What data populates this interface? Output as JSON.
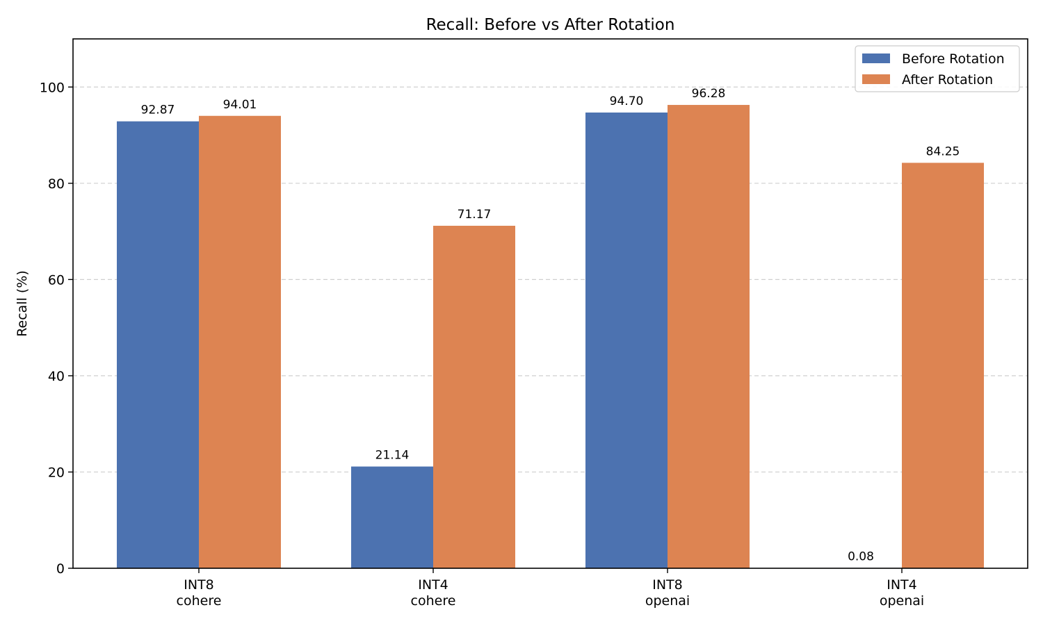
{
  "chart_data": {
    "type": "bar",
    "title": "Recall: Before vs After Rotation",
    "xlabel": "",
    "ylabel": "Recall (%)",
    "categories": [
      {
        "line1": "INT8",
        "line2": "cohere"
      },
      {
        "line1": "INT4",
        "line2": "cohere"
      },
      {
        "line1": "INT8",
        "line2": "openai"
      },
      {
        "line1": "INT4",
        "line2": "openai"
      }
    ],
    "series": [
      {
        "name": "Before Rotation",
        "color": "#4c72b0",
        "values": [
          92.87,
          21.14,
          94.7,
          0.08
        ],
        "labels": [
          "92.87",
          "21.14",
          "94.70",
          "0.08"
        ]
      },
      {
        "name": "After Rotation",
        "color": "#dd8452",
        "values": [
          94.01,
          71.17,
          96.28,
          84.25
        ],
        "labels": [
          "94.01",
          "71.17",
          "96.28",
          "84.25"
        ]
      }
    ],
    "ylim": [
      0,
      110
    ],
    "yticks": [
      0,
      20,
      40,
      60,
      80,
      100
    ],
    "grid": "y-dashed",
    "legend_position": "top-right"
  }
}
